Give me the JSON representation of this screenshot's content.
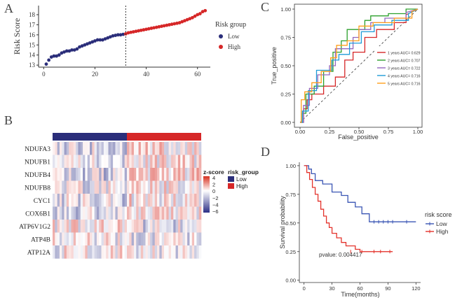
{
  "colors": {
    "low": "#2b2e7a",
    "high": "#d62728",
    "panel_c": [
      "#d62728",
      "#2ca02c",
      "#9467bd",
      "#1f9bd7",
      "#ff9f1c"
    ],
    "km_low": "#3a56b4",
    "km_high": "#e4332c"
  },
  "chart_data": [
    {
      "panel": "A",
      "type": "scatter",
      "ylabel": "Risk Score",
      "xlabel": "",
      "xlim": [
        -2,
        65
      ],
      "ylim": [
        12.8,
        18.9
      ],
      "xticks": [
        "0",
        "20",
        "40",
        "60"
      ],
      "yticks": [
        "13",
        "14",
        "15",
        "16",
        "17",
        "18"
      ],
      "cutoff": 32,
      "legend_title": "Risk group",
      "legend": [
        "Low",
        "High"
      ],
      "x": [
        1,
        2,
        3,
        4,
        5,
        6,
        7,
        8,
        9,
        10,
        11,
        12,
        13,
        14,
        15,
        16,
        17,
        18,
        19,
        20,
        21,
        22,
        23,
        24,
        25,
        26,
        27,
        28,
        29,
        30,
        31,
        32,
        33,
        34,
        35,
        36,
        37,
        38,
        39,
        40,
        41,
        42,
        43,
        44,
        45,
        46,
        47,
        48,
        49,
        50,
        51,
        52,
        53,
        54,
        55,
        56,
        57,
        58,
        59,
        60,
        61,
        62,
        63
      ],
      "y": [
        13.1,
        13.5,
        13.8,
        13.9,
        13.9,
        14.0,
        14.2,
        14.3,
        14.4,
        14.4,
        14.5,
        14.5,
        14.6,
        14.8,
        14.9,
        15.0,
        15.1,
        15.2,
        15.3,
        15.4,
        15.5,
        15.5,
        15.5,
        15.6,
        15.7,
        15.8,
        15.9,
        15.95,
        16.0,
        16.0,
        16.05,
        16.1,
        16.2,
        16.25,
        16.3,
        16.35,
        16.4,
        16.45,
        16.5,
        16.55,
        16.6,
        16.65,
        16.7,
        16.75,
        16.8,
        16.85,
        16.9,
        16.95,
        17.0,
        17.05,
        17.1,
        17.15,
        17.2,
        17.3,
        17.4,
        17.5,
        17.6,
        17.7,
        17.85,
        18.0,
        18.1,
        18.3,
        18.4
      ],
      "groups": [
        "Low",
        "Low",
        "Low",
        "Low",
        "Low",
        "Low",
        "Low",
        "Low",
        "Low",
        "Low",
        "Low",
        "Low",
        "Low",
        "Low",
        "Low",
        "Low",
        "Low",
        "Low",
        "Low",
        "Low",
        "Low",
        "Low",
        "Low",
        "Low",
        "Low",
        "Low",
        "Low",
        "Low",
        "Low",
        "Low",
        "Low",
        "High",
        "High",
        "High",
        "High",
        "High",
        "High",
        "High",
        "High",
        "High",
        "High",
        "High",
        "High",
        "High",
        "High",
        "High",
        "High",
        "High",
        "High",
        "High",
        "High",
        "High",
        "High",
        "High",
        "High",
        "High",
        "High",
        "High",
        "High",
        "High",
        "High",
        "High",
        "High"
      ]
    },
    {
      "panel": "B",
      "type": "heatmap",
      "rows": [
        "NDUFA3",
        "NDUFB1",
        "NDUFB4",
        "NDUFB8",
        "CYC1",
        "COX6B1",
        "ATP6V1G2",
        "ATP4B",
        "ATP12A"
      ],
      "n_cols": 64,
      "n_low": 32,
      "zscore_legend_title": "z-score",
      "zscore_ticks": [
        "4",
        "2",
        "0",
        "−2",
        "−4",
        "−6"
      ],
      "zscore_range": [
        -6,
        4
      ],
      "group_legend_title": "risk_group",
      "group_legend": [
        "Low",
        "High"
      ],
      "row_bias": [
        0.5,
        0.4,
        0.6,
        0.3,
        0.4,
        0.4,
        -0.3,
        -0.2,
        -0.1
      ]
    },
    {
      "panel": "C",
      "type": "line",
      "xlabel": "False_positive",
      "ylabel": "True_positive",
      "xlim": [
        0,
        1
      ],
      "ylim": [
        0,
        1
      ],
      "xticks": [
        "0.00",
        "0.25",
        "0.50",
        "0.75",
        "1.00"
      ],
      "yticks": [
        "0.00",
        "0.25",
        "0.50",
        "0.75",
        "1.00"
      ],
      "series": [
        {
          "name": "1 years AUC= 0.629",
          "x": [
            0,
            0.03,
            0.03,
            0.06,
            0.06,
            0.1,
            0.1,
            0.2,
            0.2,
            0.3,
            0.3,
            0.38,
            0.38,
            0.45,
            0.45,
            0.55,
            0.55,
            0.65,
            0.65,
            0.8,
            0.8,
            0.9,
            0.9,
            1.0
          ],
          "y": [
            0,
            0,
            0.12,
            0.12,
            0.2,
            0.2,
            0.25,
            0.25,
            0.32,
            0.32,
            0.4,
            0.4,
            0.55,
            0.55,
            0.62,
            0.62,
            0.75,
            0.75,
            0.82,
            0.82,
            0.88,
            0.88,
            0.95,
            1.0
          ]
        },
        {
          "name": "2 years AUC= 0.707",
          "x": [
            0,
            0.02,
            0.02,
            0.05,
            0.05,
            0.12,
            0.12,
            0.2,
            0.2,
            0.28,
            0.28,
            0.35,
            0.35,
            0.4,
            0.4,
            0.55,
            0.55,
            0.6,
            0.6,
            0.75,
            0.75,
            0.9,
            0.9,
            1.0
          ],
          "y": [
            0,
            0,
            0.08,
            0.08,
            0.25,
            0.25,
            0.32,
            0.32,
            0.45,
            0.45,
            0.62,
            0.62,
            0.72,
            0.72,
            0.82,
            0.82,
            0.9,
            0.9,
            0.94,
            0.94,
            0.96,
            0.96,
            1.0,
            1.0
          ]
        },
        {
          "name": "3 years AUC= 0.722",
          "x": [
            0,
            0.03,
            0.03,
            0.08,
            0.08,
            0.15,
            0.15,
            0.25,
            0.25,
            0.3,
            0.3,
            0.45,
            0.45,
            0.5,
            0.5,
            0.6,
            0.6,
            0.72,
            0.72,
            0.9,
            0.9,
            1.0
          ],
          "y": [
            0,
            0,
            0.15,
            0.15,
            0.3,
            0.3,
            0.42,
            0.42,
            0.5,
            0.5,
            0.65,
            0.65,
            0.75,
            0.75,
            0.82,
            0.82,
            0.88,
            0.88,
            0.92,
            0.92,
            0.97,
            1.0
          ]
        },
        {
          "name": "4 years AUC= 0.716",
          "x": [
            0,
            0.02,
            0.02,
            0.07,
            0.07,
            0.14,
            0.14,
            0.27,
            0.27,
            0.33,
            0.33,
            0.42,
            0.42,
            0.52,
            0.52,
            0.63,
            0.63,
            0.78,
            0.78,
            0.92,
            0.92,
            1.0
          ],
          "y": [
            0,
            0,
            0.1,
            0.1,
            0.28,
            0.28,
            0.46,
            0.46,
            0.55,
            0.55,
            0.6,
            0.6,
            0.7,
            0.7,
            0.8,
            0.8,
            0.86,
            0.86,
            0.9,
            0.9,
            0.96,
            1.0
          ]
        },
        {
          "name": "5 years AUC= 0.716",
          "x": [
            0,
            0.01,
            0.01,
            0.04,
            0.04,
            0.1,
            0.1,
            0.18,
            0.18,
            0.26,
            0.26,
            0.31,
            0.31,
            0.4,
            0.4,
            0.5,
            0.5,
            0.62,
            0.62,
            0.8,
            0.8,
            0.95,
            0.95,
            1.0
          ],
          "y": [
            0,
            0,
            0.2,
            0.2,
            0.27,
            0.27,
            0.35,
            0.35,
            0.45,
            0.45,
            0.57,
            0.57,
            0.68,
            0.68,
            0.72,
            0.72,
            0.85,
            0.85,
            0.88,
            0.88,
            0.92,
            0.92,
            0.98,
            1.0
          ]
        }
      ]
    },
    {
      "panel": "D",
      "type": "line",
      "xlabel": "Time(months)",
      "ylabel": "Survival probability",
      "xlim": [
        -5,
        125
      ],
      "ylim": [
        -0.02,
        1.03
      ],
      "xticks": [
        "0",
        "30",
        "60",
        "90",
        "120"
      ],
      "yticks": [
        "0.00",
        "0.25",
        "0.50",
        "0.75",
        "1.00"
      ],
      "legend_title": "risk score",
      "pvalue": "pvalue: 0.004417",
      "series": [
        {
          "name": "Low",
          "x": [
            0,
            5,
            5,
            8,
            8,
            12,
            12,
            20,
            20,
            30,
            30,
            40,
            40,
            47,
            47,
            55,
            55,
            62,
            62,
            70,
            70,
            120
          ],
          "y": [
            1.0,
            1.0,
            0.97,
            0.97,
            0.93,
            0.93,
            0.87,
            0.87,
            0.84,
            0.84,
            0.77,
            0.77,
            0.74,
            0.74,
            0.68,
            0.68,
            0.64,
            0.64,
            0.58,
            0.58,
            0.51,
            0.51
          ],
          "censor_x": [
            75,
            80,
            85,
            90,
            95,
            110
          ]
        },
        {
          "name": "High",
          "x": [
            0,
            3,
            3,
            6,
            6,
            9,
            9,
            12,
            12,
            15,
            15,
            18,
            18,
            21,
            21,
            24,
            24,
            27,
            27,
            30,
            30,
            35,
            35,
            40,
            40,
            45,
            45,
            55,
            55,
            60,
            60,
            95
          ],
          "y": [
            1.0,
            1.0,
            0.94,
            0.94,
            0.88,
            0.88,
            0.81,
            0.81,
            0.75,
            0.75,
            0.69,
            0.69,
            0.62,
            0.62,
            0.56,
            0.56,
            0.5,
            0.5,
            0.46,
            0.46,
            0.41,
            0.41,
            0.37,
            0.37,
            0.33,
            0.33,
            0.3,
            0.3,
            0.27,
            0.27,
            0.25,
            0.25
          ],
          "censor_x": [
            50,
            62,
            75,
            82,
            92
          ]
        }
      ]
    }
  ],
  "panel_labels": {
    "a": "A",
    "b": "B",
    "c": "C",
    "d": "D"
  }
}
